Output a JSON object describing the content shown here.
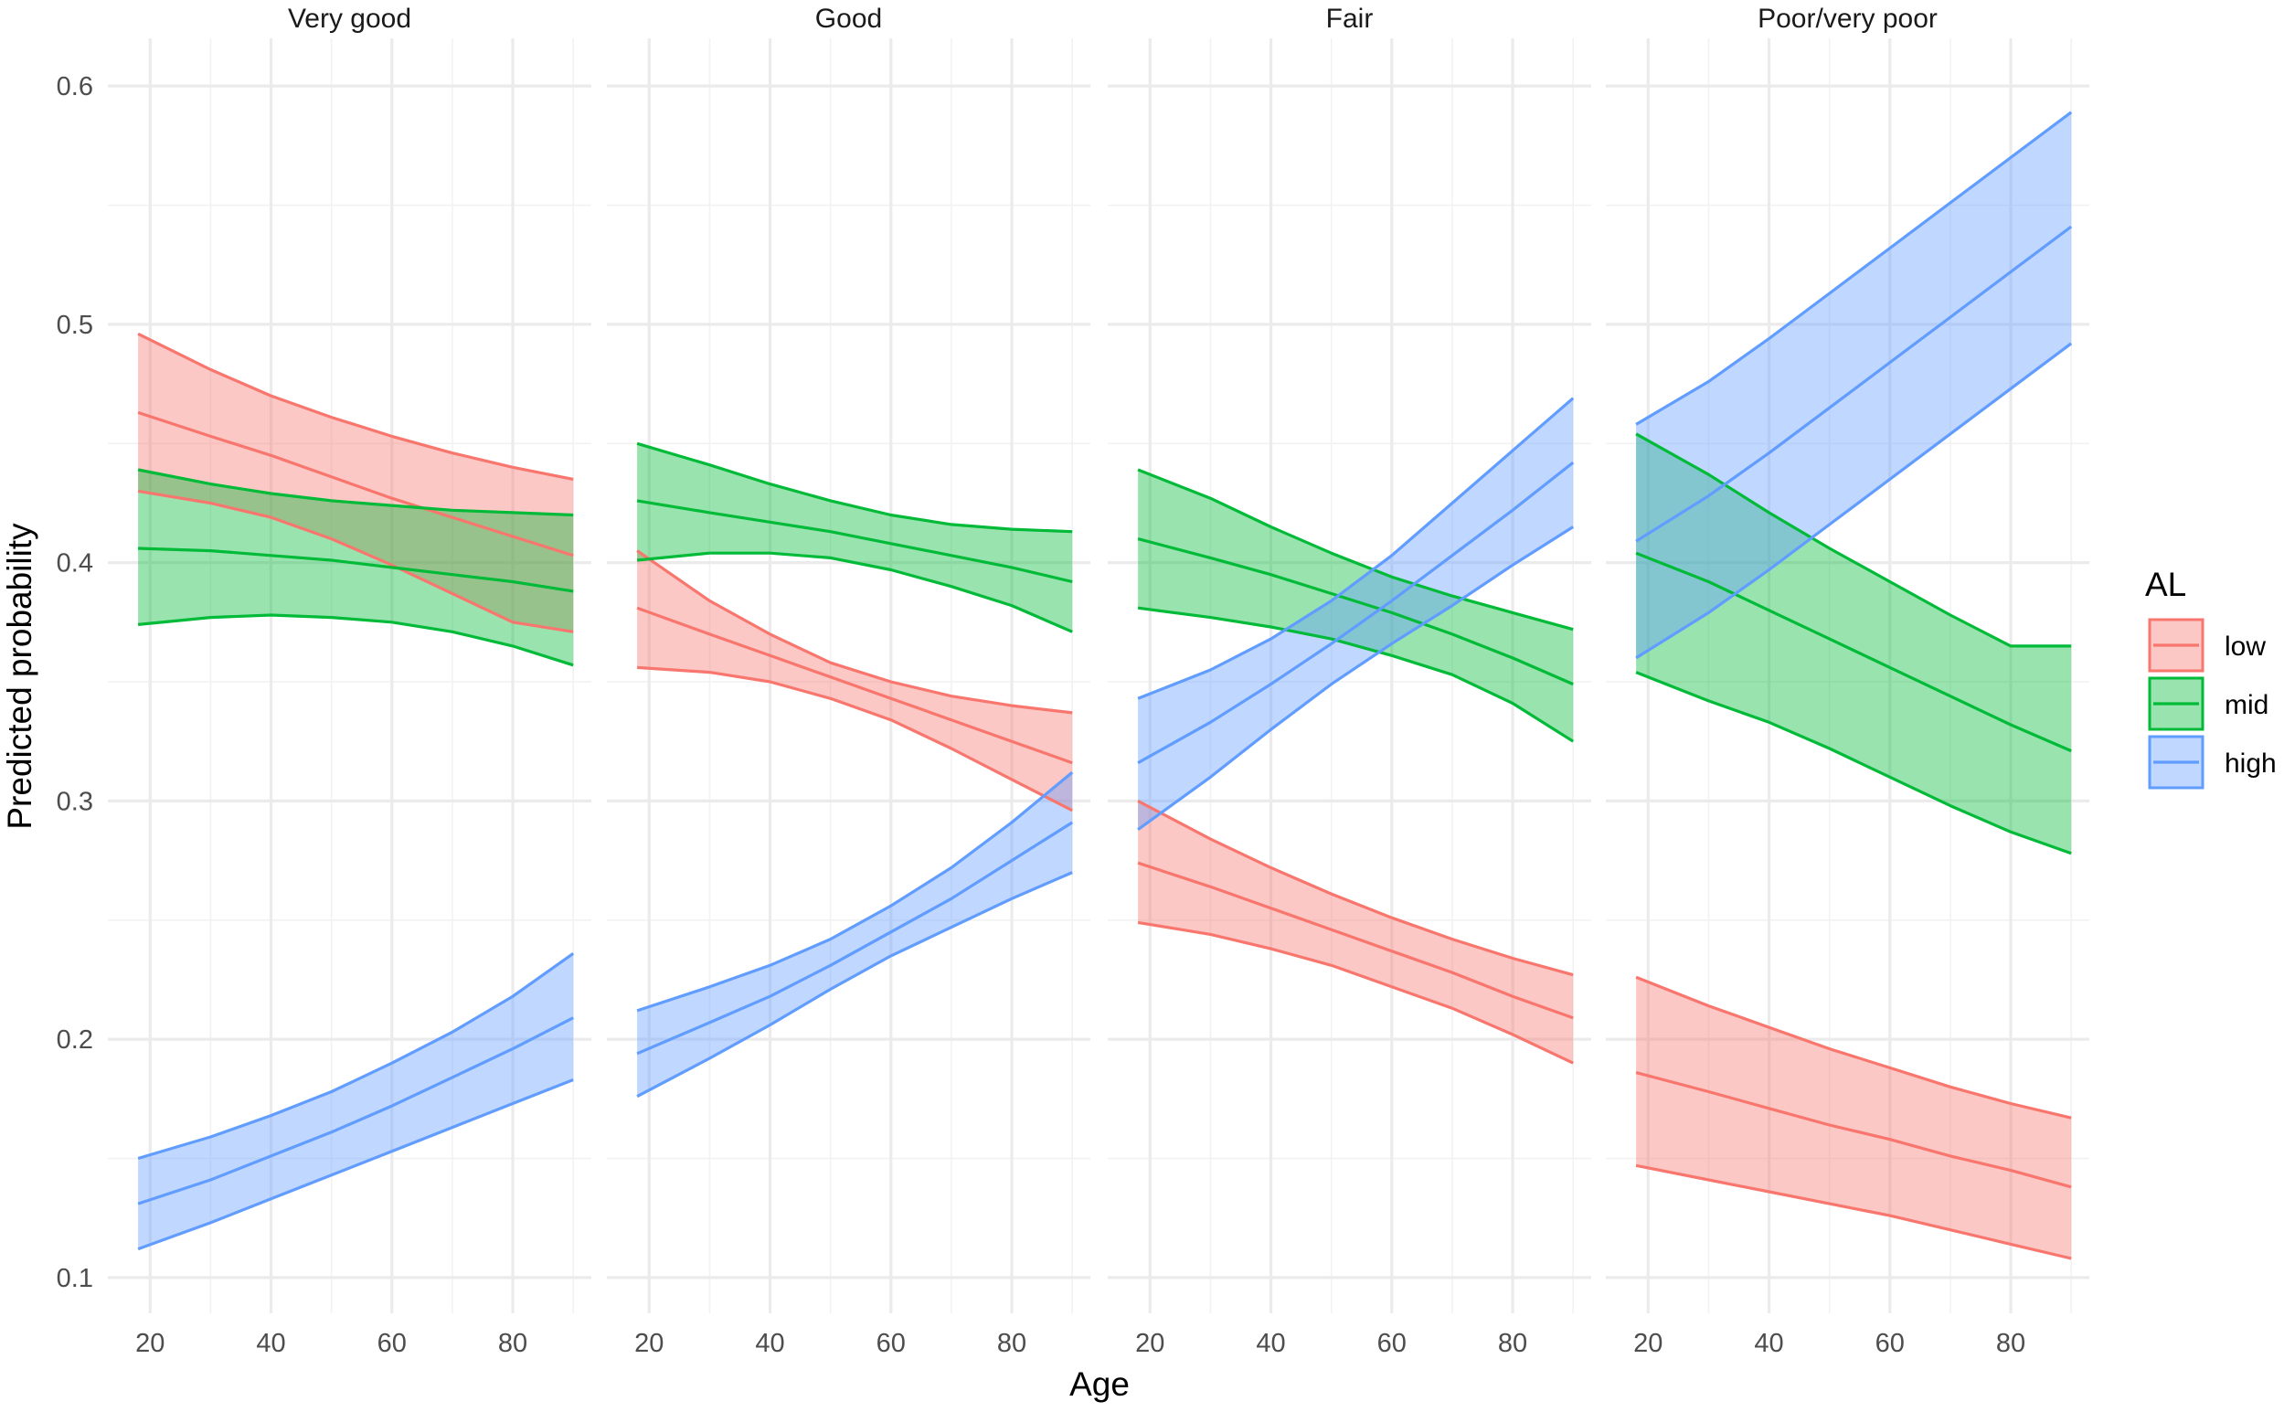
{
  "chart_data": {
    "type": "area",
    "xlabel": "Age",
    "ylabel": "Predicted probability",
    "xlim": [
      13,
      93
    ],
    "ylim": [
      0.085,
      0.62
    ],
    "x_ticks": [
      20,
      40,
      60,
      80
    ],
    "y_ticks": [
      0.1,
      0.2,
      0.3,
      0.4,
      0.5,
      0.6
    ],
    "y_tick_labels": [
      "0.1",
      "0.2",
      "0.3",
      "0.4",
      "0.5",
      "0.6"
    ],
    "grid": true,
    "legend": {
      "title": "AL",
      "position": "right",
      "entries": [
        {
          "key": "low",
          "label": "low",
          "color": "#F8766D"
        },
        {
          "key": "mid",
          "label": "mid",
          "color": "#00BA38"
        },
        {
          "key": "high",
          "label": "high",
          "color": "#619CFF"
        }
      ]
    },
    "ribbon_alpha": 0.4,
    "facets": [
      {
        "title": "Very good",
        "series": [
          {
            "key": "low",
            "x": [
              18,
              30,
              40,
              50,
              60,
              70,
              80,
              90
            ],
            "fit": [
              0.463,
              0.453,
              0.445,
              0.436,
              0.427,
              0.419,
              0.411,
              0.403
            ],
            "upper": [
              0.496,
              0.481,
              0.47,
              0.461,
              0.453,
              0.446,
              0.44,
              0.435
            ],
            "lower": [
              0.43,
              0.425,
              0.419,
              0.41,
              0.399,
              0.387,
              0.375,
              0.371
            ]
          },
          {
            "key": "mid",
            "x": [
              18,
              30,
              40,
              50,
              60,
              70,
              80,
              90
            ],
            "fit": [
              0.406,
              0.405,
              0.403,
              0.401,
              0.398,
              0.395,
              0.392,
              0.388
            ],
            "upper": [
              0.439,
              0.433,
              0.429,
              0.426,
              0.424,
              0.422,
              0.421,
              0.42
            ],
            "lower": [
              0.374,
              0.377,
              0.378,
              0.377,
              0.375,
              0.371,
              0.365,
              0.357
            ]
          },
          {
            "key": "high",
            "x": [
              18,
              30,
              40,
              50,
              60,
              70,
              80,
              90
            ],
            "fit": [
              0.131,
              0.141,
              0.151,
              0.161,
              0.172,
              0.184,
              0.196,
              0.209
            ],
            "upper": [
              0.15,
              0.159,
              0.168,
              0.178,
              0.19,
              0.203,
              0.218,
              0.236
            ],
            "lower": [
              0.112,
              0.123,
              0.133,
              0.143,
              0.153,
              0.163,
              0.173,
              0.183
            ]
          }
        ]
      },
      {
        "title": "Good",
        "series": [
          {
            "key": "low",
            "x": [
              18,
              30,
              40,
              50,
              60,
              70,
              80,
              90
            ],
            "fit": [
              0.381,
              0.37,
              0.361,
              0.352,
              0.343,
              0.334,
              0.325,
              0.316
            ],
            "upper": [
              0.405,
              0.384,
              0.37,
              0.358,
              0.35,
              0.344,
              0.34,
              0.337
            ],
            "lower": [
              0.356,
              0.354,
              0.35,
              0.343,
              0.334,
              0.322,
              0.309,
              0.296
            ]
          },
          {
            "key": "mid",
            "x": [
              18,
              30,
              40,
              50,
              60,
              70,
              80,
              90
            ],
            "fit": [
              0.426,
              0.421,
              0.417,
              0.413,
              0.408,
              0.403,
              0.398,
              0.392
            ],
            "upper": [
              0.45,
              0.441,
              0.433,
              0.426,
              0.42,
              0.416,
              0.414,
              0.413
            ],
            "lower": [
              0.401,
              0.404,
              0.404,
              0.402,
              0.397,
              0.39,
              0.382,
              0.371
            ]
          },
          {
            "key": "high",
            "x": [
              18,
              30,
              40,
              50,
              60,
              70,
              80,
              90
            ],
            "fit": [
              0.194,
              0.207,
              0.218,
              0.231,
              0.245,
              0.259,
              0.275,
              0.291
            ],
            "upper": [
              0.212,
              0.222,
              0.231,
              0.242,
              0.256,
              0.272,
              0.291,
              0.312
            ],
            "lower": [
              0.176,
              0.192,
              0.206,
              0.221,
              0.235,
              0.247,
              0.259,
              0.27
            ]
          }
        ]
      },
      {
        "title": "Fair",
        "series": [
          {
            "key": "low",
            "x": [
              18,
              30,
              40,
              50,
              60,
              70,
              80,
              90
            ],
            "fit": [
              0.274,
              0.264,
              0.255,
              0.246,
              0.237,
              0.228,
              0.218,
              0.209
            ],
            "upper": [
              0.3,
              0.284,
              0.272,
              0.261,
              0.251,
              0.242,
              0.234,
              0.227
            ],
            "lower": [
              0.249,
              0.244,
              0.238,
              0.231,
              0.222,
              0.213,
              0.202,
              0.19
            ]
          },
          {
            "key": "mid",
            "x": [
              18,
              30,
              40,
              50,
              60,
              70,
              80,
              90
            ],
            "fit": [
              0.41,
              0.402,
              0.395,
              0.387,
              0.379,
              0.37,
              0.36,
              0.349
            ],
            "upper": [
              0.439,
              0.427,
              0.415,
              0.404,
              0.394,
              0.386,
              0.379,
              0.372
            ],
            "lower": [
              0.381,
              0.377,
              0.373,
              0.368,
              0.361,
              0.353,
              0.341,
              0.325
            ]
          },
          {
            "key": "high",
            "x": [
              18,
              30,
              40,
              50,
              60,
              70,
              80,
              90
            ],
            "fit": [
              0.316,
              0.333,
              0.349,
              0.366,
              0.384,
              0.403,
              0.422,
              0.442
            ],
            "upper": [
              0.343,
              0.355,
              0.368,
              0.384,
              0.403,
              0.425,
              0.447,
              0.469
            ],
            "lower": [
              0.288,
              0.31,
              0.33,
              0.349,
              0.366,
              0.382,
              0.399,
              0.415
            ]
          }
        ]
      },
      {
        "title": "Poor/very poor",
        "series": [
          {
            "key": "low",
            "x": [
              18,
              30,
              40,
              50,
              60,
              70,
              80,
              90
            ],
            "fit": [
              0.186,
              0.178,
              0.171,
              0.164,
              0.158,
              0.151,
              0.145,
              0.138
            ],
            "upper": [
              0.226,
              0.214,
              0.205,
              0.196,
              0.188,
              0.18,
              0.173,
              0.167
            ],
            "lower": [
              0.147,
              0.141,
              0.136,
              0.131,
              0.126,
              0.12,
              0.114,
              0.108
            ]
          },
          {
            "key": "mid",
            "x": [
              18,
              30,
              40,
              50,
              60,
              70,
              80,
              90
            ],
            "fit": [
              0.404,
              0.392,
              0.38,
              0.368,
              0.356,
              0.344,
              0.332,
              0.321
            ],
            "upper": [
              0.454,
              0.437,
              0.421,
              0.406,
              0.392,
              0.378,
              0.365,
              0.365
            ],
            "lower": [
              0.354,
              0.342,
              0.333,
              0.322,
              0.31,
              0.298,
              0.287,
              0.278
            ]
          },
          {
            "key": "high",
            "x": [
              18,
              30,
              40,
              50,
              60,
              70,
              80,
              90
            ],
            "fit": [
              0.409,
              0.428,
              0.446,
              0.465,
              0.484,
              0.503,
              0.522,
              0.541
            ],
            "upper": [
              0.458,
              0.476,
              0.494,
              0.513,
              0.532,
              0.551,
              0.57,
              0.589
            ],
            "lower": [
              0.36,
              0.379,
              0.397,
              0.416,
              0.435,
              0.454,
              0.473,
              0.492
            ]
          }
        ]
      }
    ]
  }
}
